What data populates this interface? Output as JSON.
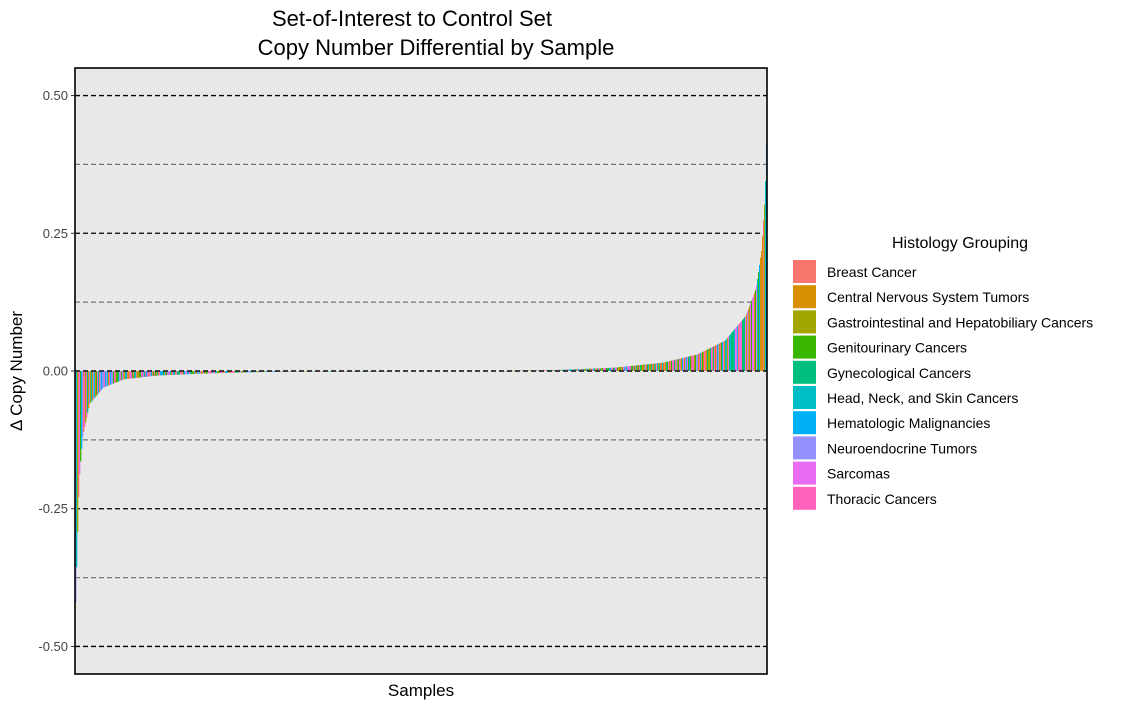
{
  "chart_data": {
    "type": "bar",
    "title_lines": [
      "Set-of-Interest to Control Set",
      "Copy Number Differential by Sample"
    ],
    "xlabel": "Samples",
    "ylabel": "Δ Copy Number",
    "ylim": [
      -0.55,
      0.55
    ],
    "major_ticks": [
      {
        "value": 0.5,
        "label": "0.50"
      },
      {
        "value": 0.25,
        "label": "0.25"
      },
      {
        "value": 0.0,
        "label": "0.00"
      },
      {
        "value": -0.25,
        "label": "-0.25"
      },
      {
        "value": -0.5,
        "label": "-0.50"
      }
    ],
    "minor_gridlines": [
      0.375,
      0.125,
      -0.125,
      -0.375
    ],
    "x_ticks": "none",
    "grid": true,
    "background": "#e8e8e8",
    "legend": {
      "title": "Histology Grouping",
      "position": "right",
      "entries": [
        {
          "name": "Breast Cancer",
          "color": "#F8766D"
        },
        {
          "name": "Central Nervous System Tumors",
          "color": "#D89000"
        },
        {
          "name": "Gastrointestinal and Hepatobiliary Cancers",
          "color": "#A3A500"
        },
        {
          "name": "Genitourinary Cancers",
          "color": "#39B600"
        },
        {
          "name": "Gynecological Cancers",
          "color": "#00BF7D"
        },
        {
          "name": "Head, Neck, and Skin Cancers",
          "color": "#00BFC4"
        },
        {
          "name": "Hematologic Malignancies",
          "color": "#00B0F6"
        },
        {
          "name": "Neuroendocrine Tumors",
          "color": "#9590FF"
        },
        {
          "name": "Sarcomas",
          "color": "#E76BF3"
        },
        {
          "name": "Thoracic Cancers",
          "color": "#FF62BC"
        }
      ]
    },
    "samples": {
      "ordering": "ascending",
      "profile": [
        {
          "rank": 0.0,
          "value": -0.42
        },
        {
          "rank": 0.005,
          "value": -0.2
        },
        {
          "rank": 0.01,
          "value": -0.12
        },
        {
          "rank": 0.02,
          "value": -0.06
        },
        {
          "rank": 0.04,
          "value": -0.03
        },
        {
          "rank": 0.07,
          "value": -0.015
        },
        {
          "rank": 0.12,
          "value": -0.008
        },
        {
          "rank": 0.2,
          "value": -0.004
        },
        {
          "rank": 0.3,
          "value": -0.001
        },
        {
          "rank": 0.45,
          "value": 0.0
        },
        {
          "rank": 0.62,
          "value": 0.0
        },
        {
          "rank": 0.7,
          "value": 0.002
        },
        {
          "rank": 0.78,
          "value": 0.006
        },
        {
          "rank": 0.85,
          "value": 0.015
        },
        {
          "rank": 0.9,
          "value": 0.03
        },
        {
          "rank": 0.94,
          "value": 0.055
        },
        {
          "rank": 0.97,
          "value": 0.1
        },
        {
          "rank": 0.985,
          "value": 0.15
        },
        {
          "rank": 0.993,
          "value": 0.22
        },
        {
          "rank": 0.998,
          "value": 0.32
        },
        {
          "rank": 1.0,
          "value": 0.41
        }
      ]
    }
  }
}
